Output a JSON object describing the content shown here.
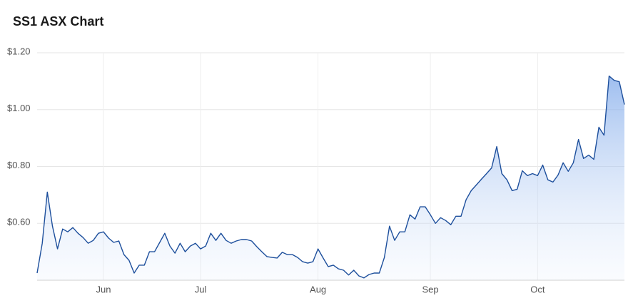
{
  "chart_data": {
    "type": "line",
    "title": "SS1 ASX Chart",
    "values": [
      0.425,
      0.53,
      0.71,
      0.59,
      0.51,
      0.58,
      0.57,
      0.585,
      0.565,
      0.55,
      0.53,
      0.54,
      0.565,
      0.57,
      0.548,
      0.533,
      0.538,
      0.49,
      0.47,
      0.425,
      0.453,
      0.453,
      0.5,
      0.5,
      0.533,
      0.565,
      0.52,
      0.495,
      0.53,
      0.5,
      0.52,
      0.53,
      0.51,
      0.52,
      0.565,
      0.54,
      0.565,
      0.54,
      0.53,
      0.538,
      0.543,
      0.543,
      0.538,
      0.518,
      0.5,
      0.483,
      0.48,
      0.478,
      0.498,
      0.49,
      0.49,
      0.48,
      0.465,
      0.46,
      0.465,
      0.51,
      0.478,
      0.448,
      0.453,
      0.44,
      0.435,
      0.418,
      0.435,
      0.415,
      0.408,
      0.42,
      0.425,
      0.425,
      0.48,
      0.59,
      0.54,
      0.57,
      0.57,
      0.63,
      0.615,
      0.658,
      0.658,
      0.63,
      0.6,
      0.62,
      0.61,
      0.595,
      0.625,
      0.625,
      0.683,
      0.715,
      0.735,
      0.755,
      0.775,
      0.795,
      0.87,
      0.775,
      0.753,
      0.715,
      0.72,
      0.785,
      0.768,
      0.775,
      0.768,
      0.805,
      0.753,
      0.745,
      0.77,
      0.813,
      0.783,
      0.813,
      0.895,
      0.828,
      0.84,
      0.825,
      0.938,
      0.91,
      1.118,
      1.103,
      1.098,
      1.018
    ],
    "color": "#1d4f9c",
    "xlim": [
      0,
      115
    ],
    "xticks": [
      {
        "value": 13,
        "label": "Jun"
      },
      {
        "value": 32,
        "label": "Jul"
      },
      {
        "value": 55,
        "label": "Aug"
      },
      {
        "value": 77,
        "label": "Sep"
      },
      {
        "value": 98,
        "label": "Oct"
      }
    ],
    "ylim": [
      0.4,
      1.2
    ],
    "yticks": [
      {
        "value": 0.6,
        "label": "$0.60"
      },
      {
        "value": 0.8,
        "label": "$0.80"
      },
      {
        "value": 1.0,
        "label": "$1.00"
      },
      {
        "value": 1.2,
        "label": "$1.20"
      }
    ],
    "grid": true
  }
}
